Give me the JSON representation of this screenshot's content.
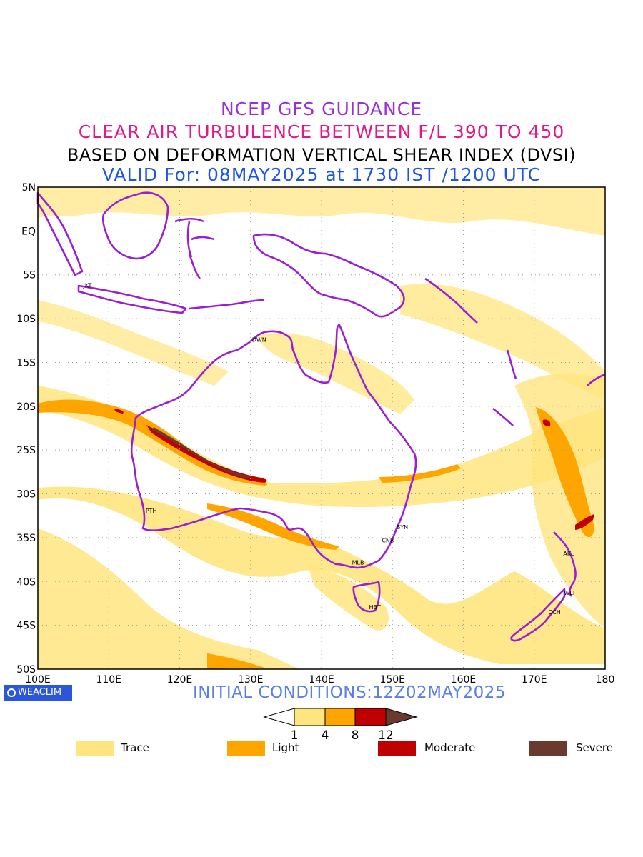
{
  "titles": {
    "line1": "NCEP GFS GUIDANCE",
    "line2": "CLEAR AIR TURBULENCE BETWEEN F/L 390 TO 450",
    "line3": "BASED ON DEFORMATION VERTICAL SHEAR INDEX (DVSI)",
    "line4": "VALID For: 08MAY2025 at 1730 IST /1200 UTC"
  },
  "map": {
    "lon_range": [
      100,
      180
    ],
    "lat_range": [
      -50,
      5
    ],
    "lat_ticks": [
      "5N",
      "EQ",
      "5S",
      "10S",
      "15S",
      "20S",
      "25S",
      "30S",
      "35S",
      "40S",
      "45S",
      "50S"
    ],
    "lon_ticks": [
      "100E",
      "110E",
      "120E",
      "130E",
      "140E",
      "150E",
      "160E",
      "170E",
      "180"
    ],
    "grid": true,
    "stations": [
      {
        "name": "JKT",
        "lon": 107.0,
        "lat": -6.2
      },
      {
        "name": "DWN",
        "lon": 130.8,
        "lat": -12.4
      },
      {
        "name": "PTH",
        "lon": 115.8,
        "lat": -31.9
      },
      {
        "name": "SYN",
        "lon": 151.2,
        "lat": -33.8
      },
      {
        "name": "CNB",
        "lon": 149.1,
        "lat": -35.3
      },
      {
        "name": "MLB",
        "lon": 144.9,
        "lat": -37.8
      },
      {
        "name": "HBT",
        "lon": 147.3,
        "lat": -42.9
      },
      {
        "name": "AKL",
        "lon": 174.7,
        "lat": -36.8
      },
      {
        "name": "WLT",
        "lon": 174.8,
        "lat": -41.3
      },
      {
        "name": "CCH",
        "lon": 172.6,
        "lat": -43.5
      }
    ]
  },
  "logo": "WEACLIM",
  "initial_conditions": "INITIAL CONDITIONS:12Z02MAY2025",
  "colorbar": {
    "ticks": [
      "1",
      "4",
      "8",
      "12"
    ],
    "colors": [
      "#ffffff",
      "#ffe57f",
      "#ffa500",
      "#c00000",
      "#6b3a2e"
    ]
  },
  "legend": [
    {
      "label": "Trace",
      "color": "#ffe57f"
    },
    {
      "label": "Light",
      "color": "#ffa500"
    },
    {
      "label": "Moderate",
      "color": "#c00000"
    },
    {
      "label": "Severe",
      "color": "#6b3a2e"
    }
  ]
}
